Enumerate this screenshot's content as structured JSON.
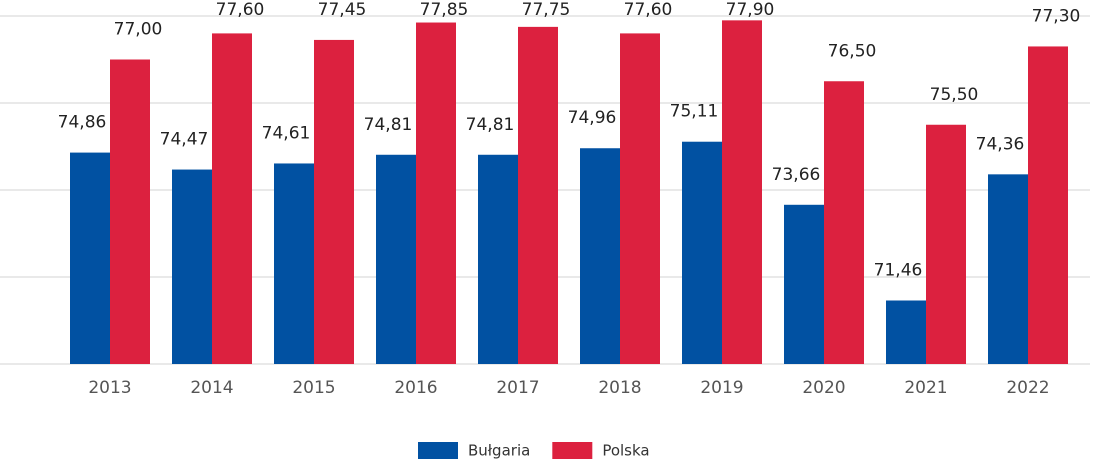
{
  "chart_data": {
    "type": "bar",
    "categories": [
      "2013",
      "2014",
      "2015",
      "2016",
      "2017",
      "2018",
      "2019",
      "2020",
      "2021",
      "2022"
    ],
    "series": [
      {
        "name": "Bułgaria",
        "color": "#0151a2",
        "values": [
          74.86,
          74.47,
          74.61,
          74.81,
          74.81,
          74.96,
          75.11,
          73.66,
          71.46,
          74.36
        ],
        "value_labels": [
          "74,86",
          "74,47",
          "74,61",
          "74,81",
          "74,81",
          "74,96",
          "75,11",
          "73,66",
          "71,46",
          "74,36"
        ]
      },
      {
        "name": "Polska",
        "color": "#dc213f",
        "values": [
          77.0,
          77.6,
          77.45,
          77.85,
          77.75,
          77.6,
          77.9,
          76.5,
          75.5,
          77.3
        ],
        "value_labels": [
          "77,00",
          "77,60",
          "77,45",
          "77,85",
          "77,75",
          "77,60",
          "77,90",
          "76,50",
          "75,50",
          "77,30"
        ]
      }
    ],
    "ylim": [
      70,
      78
    ],
    "yticks": [
      70,
      72,
      74,
      76,
      78
    ],
    "grid": true
  }
}
